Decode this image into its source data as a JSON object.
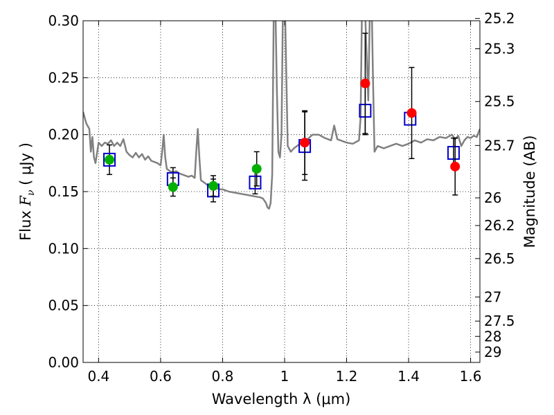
{
  "chart_data": {
    "type": "scatter",
    "title": "",
    "xlabel": "Wavelength  λ (μm)",
    "ylabel": "Flux  F_ν  ( μJy )",
    "ylabel_right": "Magnitude (AB)",
    "xlim": [
      0.35,
      1.63
    ],
    "ylim": [
      0.0,
      0.3
    ],
    "grid": true,
    "x_ticks": [
      0.4,
      0.6,
      0.8,
      1.0,
      1.2,
      1.4,
      1.6
    ],
    "x_tick_labels": [
      "0.4",
      "0.6",
      "0.8",
      "1",
      "1.2",
      "1.4",
      "1.6"
    ],
    "y_ticks": [
      0.0,
      0.05,
      0.1,
      0.15,
      0.2,
      0.25,
      0.3
    ],
    "y_tick_labels": [
      "0.00",
      "0.05",
      "0.10",
      "0.15",
      "0.20",
      "0.25",
      "0.30"
    ],
    "right_ticks": [
      {
        "label": "25.2",
        "flux": 0.302
      },
      {
        "label": "25.3",
        "flux": 0.2754
      },
      {
        "label": "25.5",
        "flux": 0.2291
      },
      {
        "label": "25.7",
        "flux": 0.1905
      },
      {
        "label": "26",
        "flux": 0.1445
      },
      {
        "label": "26.2",
        "flux": 0.1202
      },
      {
        "label": "26.5",
        "flux": 0.0912
      },
      {
        "label": "27",
        "flux": 0.0575
      },
      {
        "label": "27.5",
        "flux": 0.0363
      },
      {
        "label": "28",
        "flux": 0.0229
      },
      {
        "label": "29",
        "flux": 0.0091
      }
    ],
    "series": [
      {
        "kind": "line",
        "color": "#808080",
        "x": [
          0.35,
          0.36,
          0.37,
          0.375,
          0.38,
          0.385,
          0.39,
          0.4,
          0.41,
          0.42,
          0.43,
          0.44,
          0.45,
          0.46,
          0.47,
          0.48,
          0.49,
          0.5,
          0.51,
          0.52,
          0.53,
          0.54,
          0.55,
          0.56,
          0.57,
          0.58,
          0.59,
          0.6,
          0.605,
          0.61,
          0.615,
          0.62,
          0.63,
          0.64,
          0.65,
          0.66,
          0.67,
          0.68,
          0.69,
          0.7,
          0.71,
          0.715,
          0.72,
          0.725,
          0.73,
          0.74,
          0.75,
          0.76,
          0.77,
          0.78,
          0.79,
          0.8,
          0.82,
          0.84,
          0.86,
          0.88,
          0.9,
          0.92,
          0.93,
          0.94,
          0.945,
          0.95,
          0.955,
          0.96,
          0.965,
          0.97,
          0.975,
          0.98,
          0.985,
          0.99,
          0.995,
          1.0,
          1.005,
          1.01,
          1.02,
          1.03,
          1.04,
          1.05,
          1.07,
          1.09,
          1.11,
          1.13,
          1.15,
          1.16,
          1.17,
          1.18,
          1.2,
          1.22,
          1.24,
          1.245,
          1.25,
          1.26,
          1.27,
          1.275,
          1.28,
          1.285,
          1.29,
          1.3,
          1.32,
          1.34,
          1.36,
          1.38,
          1.4,
          1.42,
          1.44,
          1.46,
          1.48,
          1.5,
          1.52,
          1.54,
          1.55,
          1.56,
          1.57,
          1.58,
          1.59,
          1.6,
          1.61,
          1.62,
          1.63
        ],
        "values": [
          0.22,
          0.21,
          0.205,
          0.185,
          0.198,
          0.18,
          0.175,
          0.193,
          0.19,
          0.193,
          0.192,
          0.195,
          0.19,
          0.193,
          0.19,
          0.196,
          0.185,
          0.182,
          0.18,
          0.184,
          0.18,
          0.183,
          0.178,
          0.181,
          0.177,
          0.176,
          0.175,
          0.173,
          0.185,
          0.2,
          0.18,
          0.17,
          0.168,
          0.167,
          0.168,
          0.166,
          0.165,
          0.164,
          0.163,
          0.164,
          0.162,
          0.185,
          0.205,
          0.18,
          0.16,
          0.158,
          0.156,
          0.155,
          0.154,
          0.153,
          0.152,
          0.152,
          0.15,
          0.149,
          0.148,
          0.147,
          0.146,
          0.145,
          0.144,
          0.14,
          0.136,
          0.135,
          0.14,
          0.165,
          0.31,
          0.32,
          0.24,
          0.185,
          0.18,
          0.2,
          0.32,
          0.33,
          0.26,
          0.19,
          0.185,
          0.188,
          0.19,
          0.192,
          0.195,
          0.2,
          0.2,
          0.197,
          0.195,
          0.208,
          0.196,
          0.195,
          0.193,
          0.192,
          0.195,
          0.215,
          0.32,
          0.305,
          0.23,
          0.31,
          0.33,
          0.25,
          0.185,
          0.19,
          0.188,
          0.19,
          0.192,
          0.19,
          0.192,
          0.195,
          0.193,
          0.196,
          0.195,
          0.198,
          0.197,
          0.2,
          0.196,
          0.199,
          0.19,
          0.195,
          0.198,
          0.197,
          0.199,
          0.198,
          0.205
        ]
      },
      {
        "kind": "markers",
        "marker": "square",
        "color": "#0000cc",
        "x": [
          0.435,
          0.64,
          0.77,
          0.905,
          1.065,
          1.26,
          1.405,
          1.545
        ],
        "values": [
          0.178,
          0.161,
          0.151,
          0.158,
          0.19,
          0.221,
          0.214,
          0.184
        ],
        "yerr": [
          0.013,
          0.01,
          0.01,
          0.01,
          0.03,
          0.021,
          0.0,
          0.013
        ]
      },
      {
        "kind": "markers",
        "marker": "circle",
        "color": "#00b000",
        "x": [
          0.435,
          0.64,
          0.77,
          0.91
        ],
        "values": [
          0.178,
          0.154,
          0.155,
          0.17
        ],
        "yerr": [
          0.0,
          0.008,
          0.009,
          0.015
        ]
      },
      {
        "kind": "markers",
        "marker": "circle",
        "color": "#ff0000",
        "x": [
          1.065,
          1.26,
          1.41,
          1.55
        ],
        "values": [
          0.193,
          0.245,
          0.219,
          0.172
        ],
        "yerr": [
          0.028,
          0.044,
          0.04,
          0.025
        ]
      }
    ]
  }
}
